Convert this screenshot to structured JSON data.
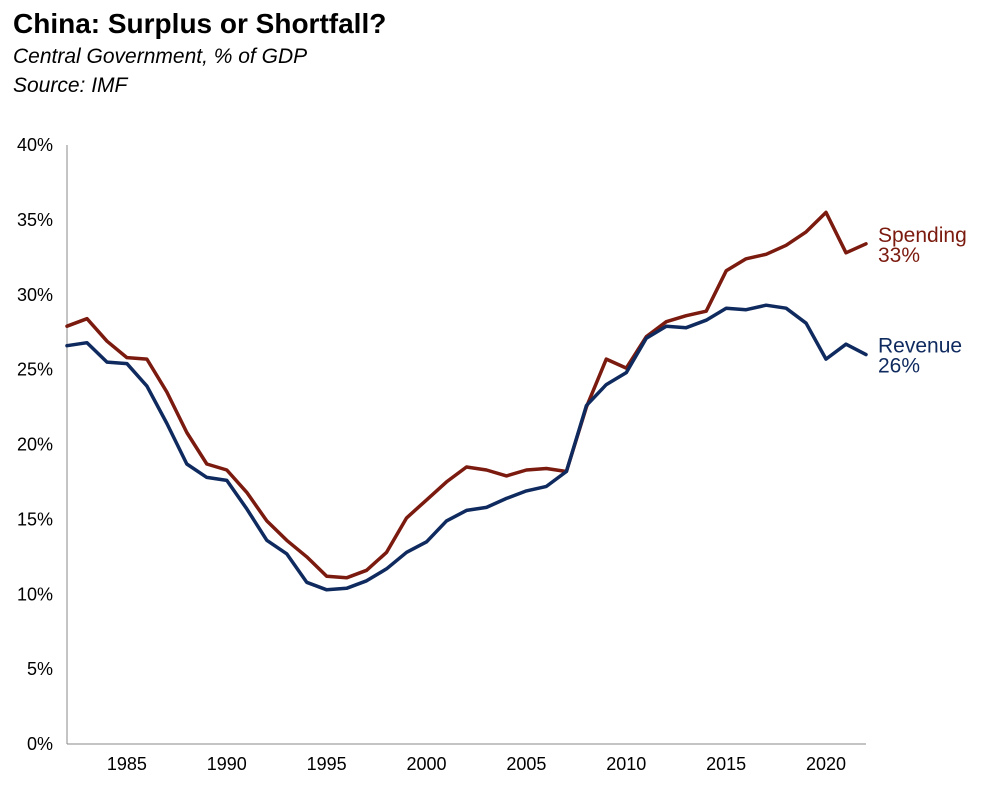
{
  "chart_data": {
    "type": "line",
    "title": "China: Surplus or Shortfall?",
    "subtitle": "Central Government, % of GDP",
    "source": "Source: IMF",
    "xlim": [
      1982,
      2022
    ],
    "ylim": [
      0,
      40
    ],
    "x_ticks": [
      "1985",
      "1990",
      "1995",
      "2000",
      "2005",
      "2010",
      "2015",
      "2020"
    ],
    "y_ticks": [
      "0%",
      "5%",
      "10%",
      "15%",
      "20%",
      "25%",
      "30%",
      "35%",
      "40%"
    ],
    "grid": false,
    "x": [
      1982,
      1983,
      1984,
      1985,
      1986,
      1987,
      1988,
      1989,
      1990,
      1991,
      1992,
      1993,
      1994,
      1995,
      1996,
      1997,
      1998,
      1999,
      2000,
      2001,
      2002,
      2003,
      2004,
      2005,
      2006,
      2007,
      2008,
      2009,
      2010,
      2011,
      2012,
      2013,
      2014,
      2015,
      2016,
      2017,
      2018,
      2019,
      2020,
      2021,
      2022
    ],
    "series": [
      {
        "name": "Spending",
        "end_label": "33%",
        "color": "#7b1a0e",
        "values": [
          27.9,
          28.4,
          26.9,
          25.8,
          25.7,
          23.5,
          20.8,
          18.7,
          18.3,
          16.8,
          14.9,
          13.6,
          12.5,
          11.2,
          11.1,
          11.6,
          12.8,
          15.1,
          16.3,
          17.5,
          18.5,
          18.3,
          17.9,
          18.3,
          18.4,
          18.2,
          22.5,
          25.7,
          25.1,
          27.2,
          28.2,
          28.6,
          28.9,
          31.6,
          32.4,
          32.7,
          33.3,
          34.2,
          35.5,
          32.8,
          33.4
        ]
      },
      {
        "name": "Revenue",
        "end_label": "26%",
        "color": "#0f2a5e",
        "values": [
          26.6,
          26.8,
          25.5,
          25.4,
          23.9,
          21.4,
          18.7,
          17.8,
          17.6,
          15.7,
          13.6,
          12.7,
          10.8,
          10.3,
          10.4,
          10.9,
          11.7,
          12.8,
          13.5,
          14.9,
          15.6,
          15.8,
          16.4,
          16.9,
          17.2,
          18.2,
          22.6,
          24.0,
          24.8,
          27.1,
          27.9,
          27.8,
          28.3,
          29.1,
          29.0,
          29.3,
          29.1,
          28.1,
          25.7,
          26.7,
          26.0
        ]
      }
    ]
  }
}
